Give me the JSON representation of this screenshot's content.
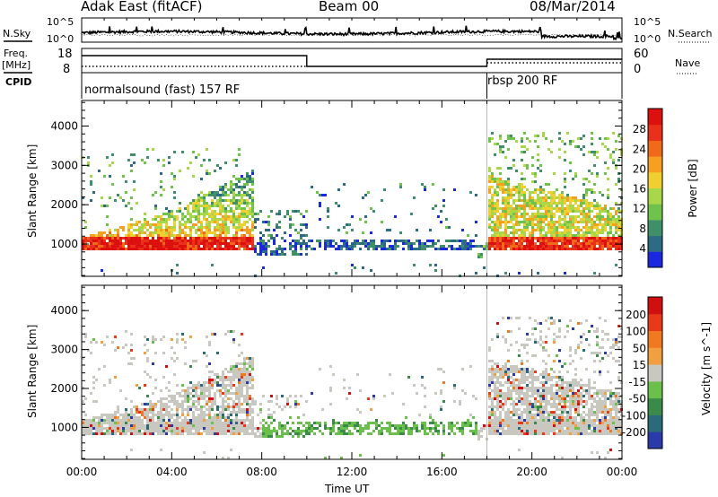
{
  "header": {
    "station": "Adak East (fitACF)",
    "beam": "Beam 00",
    "date": "08/Mar/2014"
  },
  "panels_left": {
    "nsky_label": "N.Sky",
    "noise_tick_top": "10^5",
    "noise_tick_bottom": "10^0",
    "freq_label_1": "Freq.",
    "freq_label_2": "[MHz]",
    "freq_tick_top": "18",
    "freq_tick_bottom": "8",
    "cpid_label": "CPID"
  },
  "panels_right": {
    "nsearch_label": "N.Search",
    "noise_tick_top": "10^5",
    "noise_tick_bottom": "10^0",
    "nave_label": "Nave",
    "nave_tick_top": "60",
    "nave_tick_bottom": "0"
  },
  "cpid": {
    "mode_1": "normalsound (fast) 157 RF",
    "mode_2": "rbsp 200 RF"
  },
  "chart_data": [
    {
      "type": "heatmap",
      "quantity": "Power",
      "ylabel": "Slant Range [km]",
      "yticks": [
        1000,
        2000,
        3000,
        4000
      ],
      "ylim": [
        180,
        4650
      ],
      "xlabel": "Time UT",
      "xticks": [
        "00:00",
        "04:00",
        "08:00",
        "12:00",
        "16:00",
        "20:00",
        "00:00"
      ],
      "xlim_hours": [
        0,
        24
      ],
      "colorbar_label": "Power [dB]",
      "colorbar_ticks": [
        "4",
        "8",
        "12",
        "16",
        "20",
        "24",
        "28"
      ],
      "colorbar_colors": [
        "#1a28e0",
        "#2d6a86",
        "#3f8f6a",
        "#6fc24c",
        "#a8d84a",
        "#f0d030",
        "#f5a020",
        "#f06a1a",
        "#e8301a",
        "#dd1010"
      ]
    },
    {
      "type": "heatmap",
      "quantity": "Velocity",
      "ylabel": "Slant Range [km]",
      "yticks": [
        1000,
        2000,
        3000,
        4000
      ],
      "ylim": [
        180,
        4650
      ],
      "xlabel": "Time UT",
      "xticks": [
        "00:00",
        "04:00",
        "08:00",
        "12:00",
        "16:00",
        "20:00",
        "00:00"
      ],
      "xlim_hours": [
        0,
        24
      ],
      "colorbar_label": "Velocity [m s^-1]",
      "colorbar_ticks": [
        "200",
        "100",
        "50",
        "15",
        "-15",
        "-50",
        "-100",
        "-200"
      ],
      "colorbar_colors": [
        "#2a3aa8",
        "#2a6a7a",
        "#3a8a4a",
        "#6ac04a",
        "#c8c8c0",
        "#f0a040",
        "#f07a20",
        "#e83a18",
        "#d01010"
      ]
    }
  ],
  "xaxis_title": "Time UT"
}
